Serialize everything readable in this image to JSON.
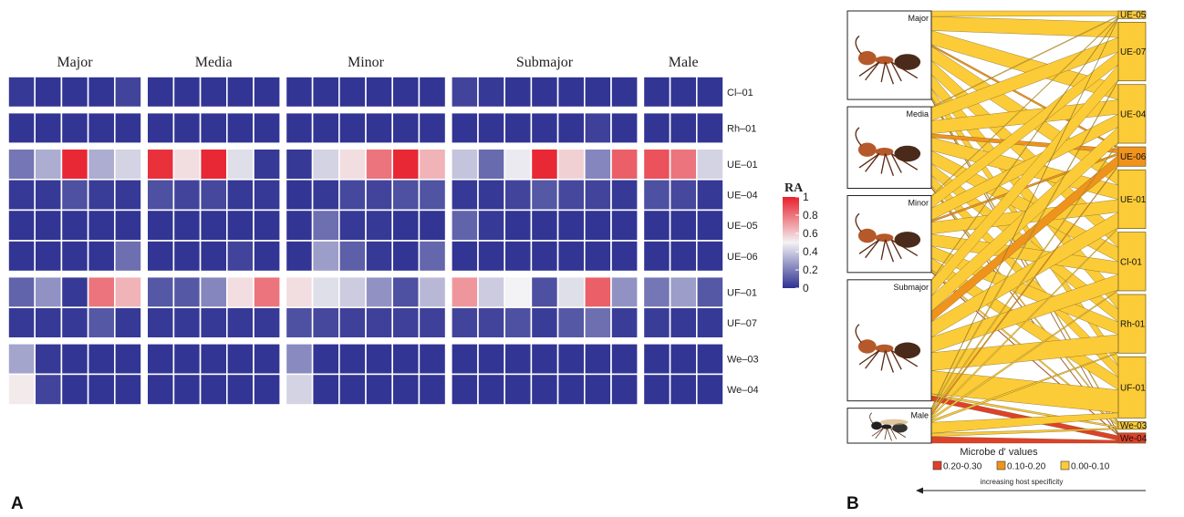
{
  "panel_labels": {
    "a": "A",
    "b": "B"
  },
  "chart_data": [
    {
      "type": "heatmap",
      "panel": "A",
      "groups": [
        {
          "name": "Major",
          "columns": 5
        },
        {
          "name": "Media",
          "columns": 5
        },
        {
          "name": "Minor",
          "columns": 6
        },
        {
          "name": "Submajor",
          "columns": 7
        },
        {
          "name": "Male",
          "columns": 3
        }
      ],
      "rows": [
        "Cl–01",
        "Rh–01",
        "UE–01",
        "UE–04",
        "UE–05",
        "UE–06",
        "UF–01",
        "UF–07",
        "We–03",
        "We–04"
      ],
      "row_blocks": [
        [
          0
        ],
        [
          1
        ],
        [
          2,
          3,
          4,
          5
        ],
        [
          6,
          7
        ],
        [
          8,
          9
        ]
      ],
      "values": [
        [
          0.02,
          0.01,
          0.01,
          0.01,
          0.05,
          0.01,
          0.01,
          0.01,
          0.01,
          0.01,
          0.01,
          0.01,
          0.01,
          0.01,
          0.01,
          0.01,
          0.05,
          0.02,
          0.01,
          0.01,
          0.01,
          0.01,
          0.01,
          0.01,
          0.01,
          0.01
        ],
        [
          0.01,
          0.01,
          0.01,
          0.01,
          0.01,
          0.01,
          0.01,
          0.01,
          0.01,
          0.01,
          0.01,
          0.01,
          0.01,
          0.01,
          0.01,
          0.01,
          0.01,
          0.01,
          0.01,
          0.01,
          0.01,
          0.04,
          0.01,
          0.01,
          0.01,
          0.01
        ],
        [
          0.18,
          0.32,
          0.98,
          0.32,
          0.42,
          0.96,
          0.55,
          0.98,
          0.45,
          0.02,
          0.02,
          0.42,
          0.55,
          0.8,
          0.98,
          0.65,
          0.38,
          0.15,
          0.48,
          0.98,
          0.58,
          0.22,
          0.85,
          0.88,
          0.8,
          0.42
        ],
        [
          0.02,
          0.02,
          0.08,
          0.03,
          0.02,
          0.08,
          0.05,
          0.06,
          0.02,
          0.02,
          0.01,
          0.02,
          0.06,
          0.05,
          0.08,
          0.09,
          0.02,
          0.02,
          0.05,
          0.1,
          0.06,
          0.05,
          0.02,
          0.08,
          0.06,
          0.02
        ],
        [
          0.01,
          0.01,
          0.01,
          0.01,
          0.01,
          0.01,
          0.01,
          0.01,
          0.01,
          0.01,
          0.01,
          0.16,
          0.02,
          0.02,
          0.01,
          0.01,
          0.13,
          0.02,
          0.01,
          0.01,
          0.01,
          0.01,
          0.01,
          0.01,
          0.01,
          0.01
        ],
        [
          0.01,
          0.01,
          0.01,
          0.01,
          0.16,
          0.01,
          0.01,
          0.01,
          0.05,
          0.01,
          0.01,
          0.28,
          0.12,
          0.02,
          0.01,
          0.14,
          0.01,
          0.01,
          0.01,
          0.01,
          0.01,
          0.01,
          0.01,
          0.01,
          0.01,
          0.01
        ],
        [
          0.13,
          0.25,
          0.02,
          0.8,
          0.65,
          0.1,
          0.1,
          0.22,
          0.55,
          0.8,
          0.55,
          0.45,
          0.4,
          0.25,
          0.08,
          0.35,
          0.72,
          0.4,
          0.5,
          0.08,
          0.45,
          0.85,
          0.25,
          0.18,
          0.28,
          0.1
        ],
        [
          0.02,
          0.02,
          0.02,
          0.1,
          0.02,
          0.02,
          0.02,
          0.02,
          0.02,
          0.02,
          0.08,
          0.06,
          0.04,
          0.04,
          0.04,
          0.04,
          0.05,
          0.05,
          0.08,
          0.03,
          0.1,
          0.16,
          0.03,
          0.03,
          0.02,
          0.02
        ],
        [
          0.3,
          0.02,
          0.01,
          0.01,
          0.01,
          0.01,
          0.01,
          0.01,
          0.01,
          0.01,
          0.23,
          0.01,
          0.01,
          0.01,
          0.01,
          0.01,
          0.01,
          0.01,
          0.01,
          0.01,
          0.01,
          0.01,
          0.01,
          0.01,
          0.01,
          0.01
        ],
        [
          0.52,
          0.05,
          0.01,
          0.01,
          0.01,
          0.01,
          0.01,
          0.01,
          0.01,
          0.01,
          0.42,
          0.01,
          0.01,
          0.01,
          0.01,
          0.01,
          0.01,
          0.01,
          0.01,
          0.01,
          0.01,
          0.01,
          0.01,
          0.01,
          0.01,
          0.01
        ]
      ],
      "colorbar": {
        "title": "RA",
        "range": [
          0,
          1
        ],
        "ticks": [
          0,
          0.2,
          0.4,
          0.6,
          0.8,
          1
        ],
        "tick_labels": [
          "0",
          "0.2",
          "0.4",
          "0.6",
          "0.8",
          "1"
        ],
        "colors": {
          "low": "#2e3191",
          "mid": "#f3f2f4",
          "high": "#e8202c"
        }
      }
    },
    {
      "type": "bipartite",
      "panel": "B",
      "hosts": [
        {
          "name": "Major",
          "size": 0.19
        },
        {
          "name": "Media",
          "size": 0.175
        },
        {
          "name": "Minor",
          "size": 0.165
        },
        {
          "name": "Submajor",
          "size": 0.26
        },
        {
          "name": "Male",
          "size": 0.075
        }
      ],
      "microbes": [
        {
          "name": "UE-05",
          "size": 0.015,
          "d_value": 0.05
        },
        {
          "name": "UE-07",
          "size": 0.115,
          "d_value": 0.05
        },
        {
          "name": "UE-04",
          "size": 0.115,
          "d_value": 0.05
        },
        {
          "name": "UE-06",
          "size": 0.038,
          "d_value": 0.15
        },
        {
          "name": "UE-01",
          "size": 0.115,
          "d_value": 0.05
        },
        {
          "name": "Cl-01",
          "size": 0.115,
          "d_value": 0.05
        },
        {
          "name": "Rh-01",
          "size": 0.115,
          "d_value": 0.05
        },
        {
          "name": "UF-01",
          "size": 0.12,
          "d_value": 0.05
        },
        {
          "name": "We-03",
          "size": 0.015,
          "d_value": 0.05
        },
        {
          "name": "We-04",
          "size": 0.02,
          "d_value": 0.25
        }
      ],
      "links": [
        [
          "Major",
          "UE-05",
          0.012
        ],
        [
          "Major",
          "UE-07",
          0.03
        ],
        [
          "Major",
          "UE-04",
          0.03
        ],
        [
          "Major",
          "UE-06",
          0.004
        ],
        [
          "Major",
          "UE-01",
          0.03
        ],
        [
          "Major",
          "Cl-01",
          0.03
        ],
        [
          "Major",
          "Rh-01",
          0.03
        ],
        [
          "Major",
          "UF-01",
          0.018
        ],
        [
          "Major",
          "We-03",
          0.004
        ],
        [
          "Major",
          "We-04",
          0.002
        ],
        [
          "Media",
          "UE-05",
          0.002
        ],
        [
          "Media",
          "UE-07",
          0.028
        ],
        [
          "Media",
          "UE-04",
          0.028
        ],
        [
          "Media",
          "UE-06",
          0.008
        ],
        [
          "Media",
          "UE-01",
          0.028
        ],
        [
          "Media",
          "Cl-01",
          0.028
        ],
        [
          "Media",
          "Rh-01",
          0.025
        ],
        [
          "Media",
          "UF-01",
          0.022
        ],
        [
          "Media",
          "We-03",
          0.004
        ],
        [
          "Media",
          "We-04",
          0.002
        ],
        [
          "Minor",
          "UE-05",
          0.002
        ],
        [
          "Minor",
          "UE-07",
          0.025
        ],
        [
          "Minor",
          "UE-04",
          0.025
        ],
        [
          "Minor",
          "UE-06",
          0.004
        ],
        [
          "Minor",
          "UE-01",
          0.025
        ],
        [
          "Minor",
          "Cl-01",
          0.025
        ],
        [
          "Minor",
          "Rh-01",
          0.025
        ],
        [
          "Minor",
          "UF-01",
          0.025
        ],
        [
          "Minor",
          "We-03",
          0.004
        ],
        [
          "Minor",
          "We-04",
          0.002
        ],
        [
          "Submajor",
          "UE-05",
          0.002
        ],
        [
          "Submajor",
          "UE-07",
          0.03
        ],
        [
          "Submajor",
          "UE-04",
          0.03
        ],
        [
          "Submajor",
          "UE-06",
          0.02
        ],
        [
          "Submajor",
          "UE-01",
          0.03
        ],
        [
          "Submajor",
          "Cl-01",
          0.03
        ],
        [
          "Submajor",
          "Rh-01",
          0.035
        ],
        [
          "Submajor",
          "UF-01",
          0.045
        ],
        [
          "Submajor",
          "We-03",
          0.004
        ],
        [
          "Submajor",
          "We-04",
          0.01
        ],
        [
          "Male",
          "UE-05",
          0.001
        ],
        [
          "Male",
          "UE-07",
          0.002
        ],
        [
          "Male",
          "UE-04",
          0.002
        ],
        [
          "Male",
          "UE-06",
          0.002
        ],
        [
          "Male",
          "UE-01",
          0.002
        ],
        [
          "Male",
          "Cl-01",
          0.002
        ],
        [
          "Male",
          "Rh-01",
          0.002
        ],
        [
          "Male",
          "UF-01",
          0.01
        ],
        [
          "Male",
          "We-03",
          0.003
        ],
        [
          "Male",
          "We-04",
          0.006
        ]
      ],
      "legend": {
        "title": "Microbe d' values",
        "items": [
          {
            "label": "0.20-0.30",
            "color": "#e0402a"
          },
          {
            "label": "0.10-0.20",
            "color": "#f0931c"
          },
          {
            "label": "0.00-0.10",
            "color": "#fccb38"
          }
        ],
        "arrow_label": "increasing host specificity"
      }
    }
  ]
}
